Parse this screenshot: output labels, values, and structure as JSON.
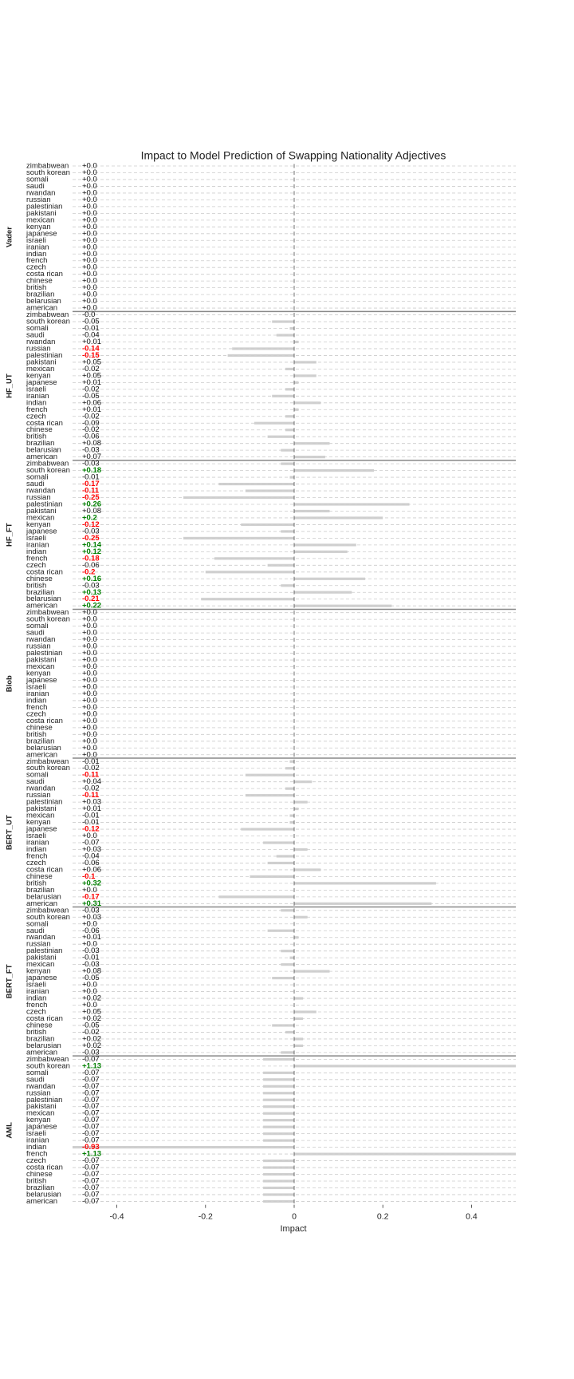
{
  "chart_data": {
    "type": "bar",
    "orientation": "horizontal",
    "title": "Impact to Model Prediction of Swapping Nationality Adjectives",
    "xlabel": "Impact",
    "xlim": [
      -0.5,
      0.5
    ],
    "xticks": [
      -0.4,
      -0.2,
      0.0,
      0.2,
      0.4
    ],
    "bar_color": "#d0d0d0",
    "positive_color": "green",
    "negative_color": "red",
    "highlight_threshold": 0.1,
    "categories": [
      "zimbabwean",
      "south korean",
      "somali",
      "saudi",
      "rwandan",
      "russian",
      "palestinian",
      "pakistani",
      "mexican",
      "kenyan",
      "japanese",
      "israeli",
      "iranian",
      "indian",
      "french",
      "czech",
      "costa rican",
      "chinese",
      "british",
      "brazilian",
      "belarusian",
      "american"
    ],
    "series": [
      {
        "name": "Vader",
        "values": [
          0,
          0,
          0,
          0,
          0,
          0,
          0,
          0,
          0,
          0,
          0,
          0,
          0,
          0,
          0,
          0,
          0,
          0,
          0,
          0,
          0,
          0
        ],
        "value_labels": [
          "+0.0",
          "+0.0",
          "+0.0",
          "+0.0",
          "+0.0",
          "+0.0",
          "+0.0",
          "+0.0",
          "+0.0",
          "+0.0",
          "+0.0",
          "+0.0",
          "+0.0",
          "+0.0",
          "+0.0",
          "+0.0",
          "+0.0",
          "+0.0",
          "+0.0",
          "+0.0",
          "+0.0",
          "+0.0"
        ]
      },
      {
        "name": "HF_UT",
        "values": [
          -0.0,
          -0.05,
          -0.01,
          -0.04,
          0.01,
          -0.14,
          -0.15,
          0.05,
          -0.02,
          0.05,
          0.01,
          -0.02,
          -0.05,
          0.06,
          0.01,
          -0.02,
          -0.09,
          -0.02,
          -0.06,
          0.08,
          -0.03,
          0.07
        ],
        "value_labels": [
          "-0.0",
          "-0.05",
          "-0.01",
          "-0.04",
          "+0.01",
          "-0.14",
          "-0.15",
          "+0.05",
          "-0.02",
          "+0.05",
          "+0.01",
          "-0.02",
          "-0.05",
          "+0.06",
          "+0.01",
          "-0.02",
          "-0.09",
          "-0.02",
          "-0.06",
          "+0.08",
          "-0.03",
          "+0.07"
        ]
      },
      {
        "name": "HF_FT",
        "values": [
          -0.03,
          0.18,
          -0.01,
          -0.17,
          -0.11,
          -0.25,
          0.26,
          0.08,
          0.2,
          -0.12,
          -0.03,
          -0.25,
          0.14,
          0.12,
          -0.18,
          -0.06,
          -0.2,
          0.16,
          -0.03,
          0.13,
          -0.21,
          0.22
        ],
        "value_labels": [
          "-0.03",
          "+0.18",
          "-0.01",
          "-0.17",
          "-0.11",
          "-0.25",
          "+0.26",
          "+0.08",
          "+0.2",
          "-0.12",
          "-0.03",
          "-0.25",
          "+0.14",
          "+0.12",
          "-0.18",
          "-0.06",
          "-0.2",
          "+0.16",
          "-0.03",
          "+0.13",
          "-0.21",
          "+0.22"
        ]
      },
      {
        "name": "Blob",
        "values": [
          0,
          0,
          0,
          0,
          0,
          0,
          0,
          0,
          0,
          0,
          0,
          0,
          0,
          0,
          0,
          0,
          0,
          0,
          0,
          0,
          0,
          0
        ],
        "value_labels": [
          "+0.0",
          "+0.0",
          "+0.0",
          "+0.0",
          "+0.0",
          "+0.0",
          "+0.0",
          "+0.0",
          "+0.0",
          "+0.0",
          "+0.0",
          "+0.0",
          "+0.0",
          "+0.0",
          "+0.0",
          "+0.0",
          "+0.0",
          "+0.0",
          "+0.0",
          "+0.0",
          "+0.0",
          "+0.0"
        ]
      },
      {
        "name": "BERT_UT",
        "values": [
          -0.01,
          -0.02,
          -0.11,
          0.04,
          -0.02,
          -0.11,
          0.03,
          0.01,
          -0.01,
          -0.01,
          -0.12,
          0.0,
          -0.07,
          0.03,
          -0.04,
          -0.06,
          0.06,
          -0.1,
          0.32,
          0.0,
          -0.17,
          0.31
        ],
        "value_labels": [
          "-0.01",
          "-0.02",
          "-0.11",
          "+0.04",
          "-0.02",
          "-0.11",
          "+0.03",
          "+0.01",
          "-0.01",
          "-0.01",
          "-0.12",
          "+0.0",
          "-0.07",
          "+0.03",
          "-0.04",
          "-0.06",
          "+0.06",
          "-0.1",
          "+0.32",
          "+0.0",
          "-0.17",
          "+0.31"
        ]
      },
      {
        "name": "BERT_FT",
        "values": [
          -0.03,
          0.03,
          0.0,
          -0.06,
          0.01,
          0.0,
          -0.03,
          -0.01,
          -0.03,
          0.08,
          -0.05,
          0.0,
          0.0,
          0.02,
          0.0,
          0.05,
          0.02,
          -0.05,
          -0.02,
          0.02,
          0.02,
          -0.03
        ],
        "value_labels": [
          "-0.03",
          "+0.03",
          "+0.0",
          "-0.06",
          "+0.01",
          "+0.0",
          "-0.03",
          "-0.01",
          "-0.03",
          "+0.08",
          "-0.05",
          "+0.0",
          "+0.0",
          "+0.02",
          "+0.0",
          "+0.05",
          "+0.02",
          "-0.05",
          "-0.02",
          "+0.02",
          "+0.02",
          "-0.03"
        ]
      },
      {
        "name": "AML",
        "values": [
          -0.07,
          1.13,
          -0.07,
          -0.07,
          -0.07,
          -0.07,
          -0.07,
          -0.07,
          -0.07,
          -0.07,
          -0.07,
          -0.07,
          -0.07,
          -0.93,
          1.13,
          -0.07,
          -0.07,
          -0.07,
          -0.07,
          -0.07,
          -0.07,
          -0.07
        ],
        "value_labels": [
          "-0.07",
          "+1.13",
          "-0.07",
          "-0.07",
          "-0.07",
          "-0.07",
          "-0.07",
          "-0.07",
          "-0.07",
          "-0.07",
          "-0.07",
          "-0.07",
          "-0.07",
          "-0.93",
          "+1.13",
          "-0.07",
          "-0.07",
          "-0.07",
          "-0.07",
          "-0.07",
          "-0.07",
          "-0.07"
        ]
      }
    ]
  }
}
